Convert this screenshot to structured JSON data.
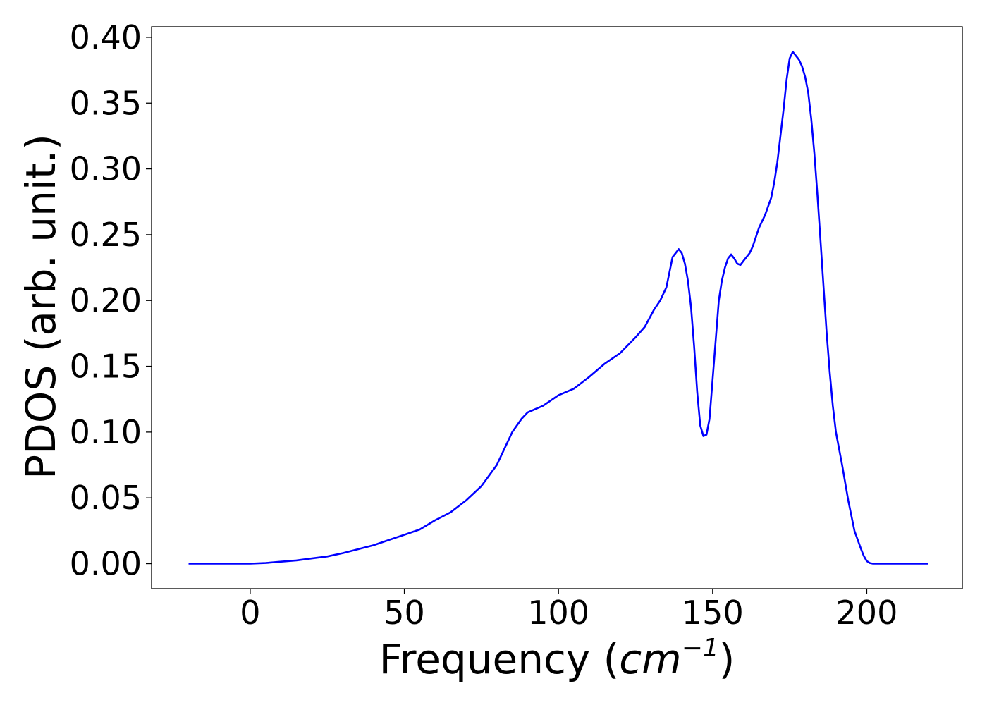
{
  "chart_data": {
    "type": "line",
    "title": "",
    "xlabel": "Frequency",
    "xlabel_unit_base": "cm",
    "xlabel_unit_exponent": "−1",
    "ylabel": "PDOS (arb. unit.)",
    "xlim": [
      -32,
      231
    ],
    "ylim": [
      -0.019,
      0.408
    ],
    "grid": false,
    "legend": "none",
    "line_color": "#0000ff",
    "x_ticks": [
      0,
      50,
      100,
      150,
      200
    ],
    "x_tick_labels": [
      "0",
      "50",
      "100",
      "150",
      "200"
    ],
    "y_ticks": [
      0.0,
      0.05,
      0.1,
      0.15,
      0.2,
      0.25,
      0.3,
      0.35,
      0.4
    ],
    "y_tick_labels": [
      "0.00",
      "0.05",
      "0.10",
      "0.15",
      "0.20",
      "0.25",
      "0.30",
      "0.35",
      "0.40"
    ],
    "series": [
      {
        "x": [
          -20,
          -10,
          0,
          5,
          10,
          15,
          20,
          25,
          30,
          35,
          40,
          45,
          50,
          55,
          60,
          65,
          70,
          75,
          80,
          85,
          88,
          90,
          95,
          100,
          105,
          110,
          115,
          120,
          125,
          128,
          131,
          133,
          135,
          137,
          139,
          140,
          141,
          142,
          143,
          144,
          145,
          146,
          147,
          148,
          149,
          150,
          151,
          152,
          153,
          154,
          155,
          156,
          157,
          158,
          159,
          160,
          161,
          162,
          163,
          165,
          167,
          169,
          170,
          171,
          172,
          173,
          174,
          175,
          176,
          177,
          178,
          179,
          180,
          181,
          182,
          183,
          184,
          185,
          186,
          187,
          188,
          189,
          190,
          192,
          194,
          196,
          198,
          199,
          200,
          201,
          202,
          203,
          204,
          206,
          210,
          220
        ],
        "y": [
          0.0,
          0.0,
          0.0,
          0.0005,
          0.0015,
          0.0025,
          0.004,
          0.0055,
          0.008,
          0.011,
          0.014,
          0.018,
          0.022,
          0.026,
          0.033,
          0.039,
          0.048,
          0.059,
          0.075,
          0.1,
          0.11,
          0.115,
          0.12,
          0.128,
          0.133,
          0.142,
          0.152,
          0.16,
          0.172,
          0.18,
          0.193,
          0.2,
          0.21,
          0.233,
          0.239,
          0.236,
          0.228,
          0.215,
          0.195,
          0.165,
          0.13,
          0.105,
          0.097,
          0.098,
          0.11,
          0.14,
          0.17,
          0.2,
          0.215,
          0.225,
          0.232,
          0.235,
          0.232,
          0.228,
          0.227,
          0.23,
          0.233,
          0.236,
          0.241,
          0.255,
          0.265,
          0.278,
          0.29,
          0.305,
          0.325,
          0.345,
          0.368,
          0.384,
          0.389,
          0.386,
          0.383,
          0.378,
          0.37,
          0.358,
          0.338,
          0.312,
          0.28,
          0.245,
          0.21,
          0.175,
          0.145,
          0.12,
          0.1,
          0.075,
          0.048,
          0.025,
          0.012,
          0.006,
          0.002,
          0.0005,
          0.0,
          0.0,
          0.0,
          0.0,
          0.0,
          0.0
        ]
      }
    ]
  }
}
